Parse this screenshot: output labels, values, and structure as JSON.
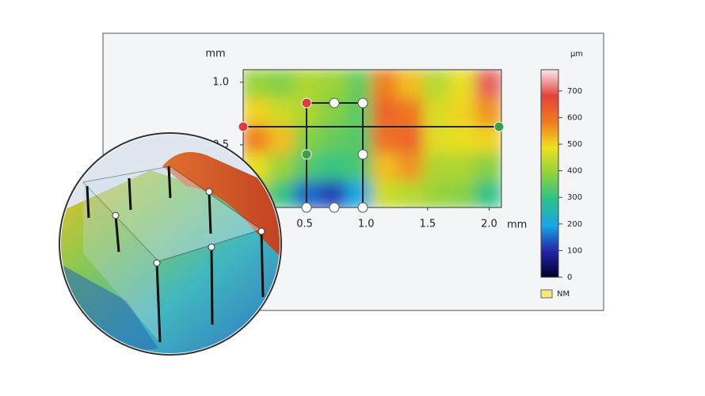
{
  "chart_data": {
    "type": "heatmap",
    "x_unit": "mm",
    "y_unit": "mm",
    "color_unit": "µm",
    "xlim": [
      0,
      2.1
    ],
    "ylim": [
      0,
      1.1
    ],
    "xticks": [
      0.5,
      {
        "value": 1,
        "label": "1.0"
      },
      1.5,
      {
        "value": 2,
        "label": "2.0"
      }
    ],
    "yticks": [
      0.5,
      {
        "value": 1,
        "label": "1.0"
      }
    ],
    "xbins": [
      0,
      0.21,
      0.42,
      0.63,
      0.84,
      1.05,
      1.26,
      1.47,
      1.68,
      1.89,
      2.1
    ],
    "ybins": [
      0,
      0.22,
      0.44,
      0.66,
      0.88,
      1.1
    ],
    "z": [
      [
        420,
        300,
        150,
        120,
        200,
        450,
        430,
        400,
        380,
        300
      ],
      [
        480,
        400,
        330,
        300,
        320,
        520,
        560,
        420,
        420,
        380
      ],
      [
        580,
        520,
        380,
        350,
        330,
        600,
        620,
        470,
        480,
        500
      ],
      [
        500,
        450,
        420,
        380,
        340,
        620,
        590,
        460,
        500,
        560
      ],
      [
        400,
        380,
        420,
        400,
        350,
        580,
        520,
        430,
        480,
        700
      ]
    ],
    "clim": [
      0,
      780
    ],
    "cticks": [
      0,
      100,
      200,
      300,
      400,
      500,
      600,
      700
    ],
    "colorscale": [
      "#000028",
      "#2424a8",
      "#1aa6e6",
      "#2cc28a",
      "#8fd23c",
      "#f0e020",
      "#f07a22",
      "#e2433a",
      "#fbe8ee"
    ],
    "legend": {
      "label": "NM",
      "color": "#f2ea7a"
    }
  }
}
